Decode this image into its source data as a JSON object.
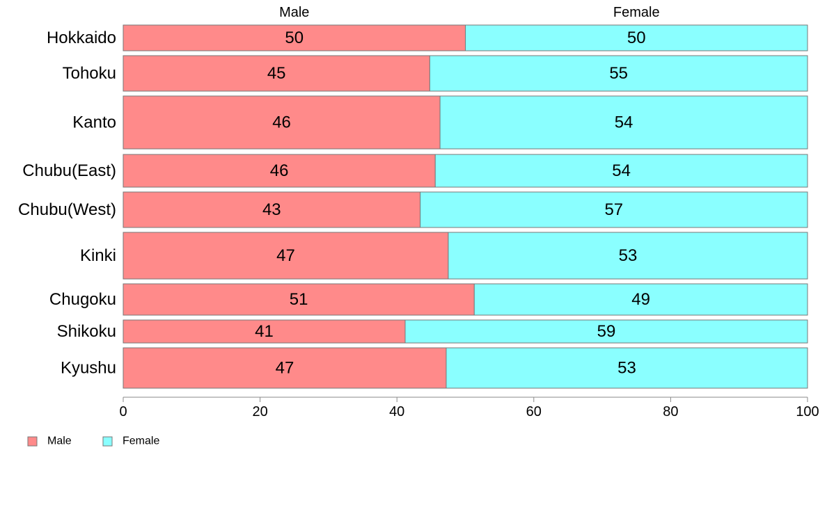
{
  "chart_data": {
    "type": "bar",
    "orientation": "horizontal",
    "stacked": "percent",
    "categories": [
      "Hokkaido",
      "Tohoku",
      "Kanto",
      "Chubu(East)",
      "Chubu(West)",
      "Kinki",
      "Chugoku",
      "Shikoku",
      "Kyushu"
    ],
    "series": [
      {
        "name": "Male",
        "values": [
          50,
          45,
          46,
          46,
          43,
          47,
          51,
          41,
          47
        ],
        "color": "#ff8a8a",
        "exact": [
          50.0,
          44.8,
          46.3,
          45.6,
          43.4,
          47.5,
          51.3,
          41.2,
          47.2
        ]
      },
      {
        "name": "Female",
        "values": [
          50,
          55,
          54,
          54,
          57,
          53,
          49,
          59,
          53
        ],
        "color": "#8affff"
      }
    ],
    "column_headers": [
      "Male",
      "Female"
    ],
    "xlim": [
      0,
      100
    ],
    "xticks": [
      0,
      20,
      40,
      60,
      80,
      100
    ],
    "grid": false,
    "legend_position": "bottom-left",
    "variable_width": true
  }
}
